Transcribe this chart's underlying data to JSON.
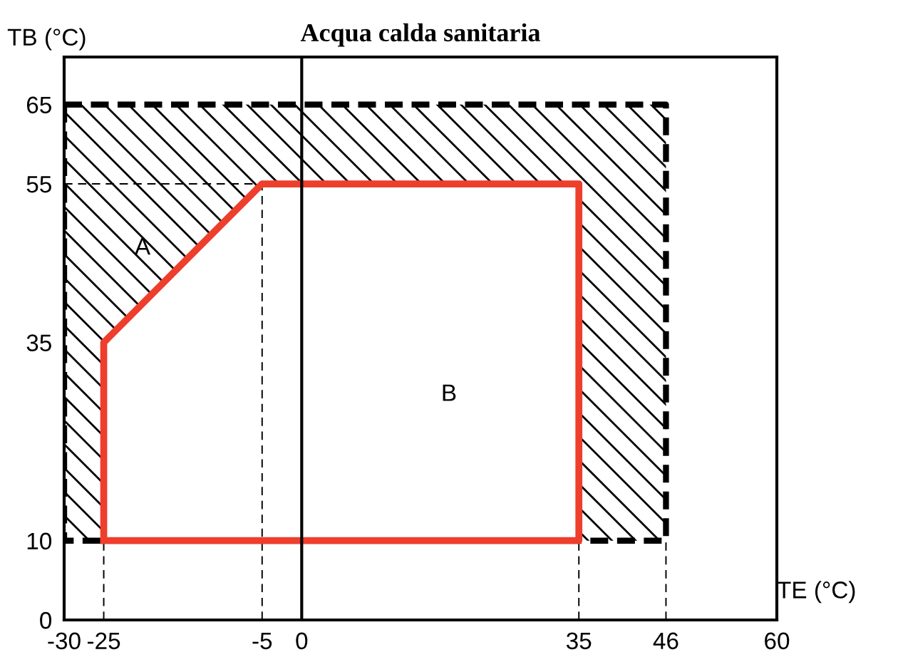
{
  "chart_data": {
    "type": "line",
    "title": "Acqua calda sanitaria",
    "xlabel": "TE (°C)",
    "ylabel": "TB (°C)",
    "xlim": [
      -30,
      60
    ],
    "ylim": [
      0,
      71
    ],
    "xticks": [
      -30,
      -25,
      -5,
      0,
      35,
      46,
      60
    ],
    "yticks": [
      0,
      10,
      35,
      55,
      65
    ],
    "grid": false,
    "legend": false,
    "series": [
      {
        "type": "area",
        "color": "#000000",
        "line_style": "dashed",
        "x": [
          -30,
          46,
          46,
          -30,
          -30
        ],
        "values": [
          65,
          65,
          10,
          10,
          65
        ]
      },
      {
        "type": "area",
        "color": "#ee3e2c",
        "line_style": "solid",
        "x": [
          -25,
          -25,
          -5,
          35,
          35,
          -25
        ],
        "values": [
          10,
          35,
          55,
          55,
          10,
          10
        ]
      },
      {
        "color": "#000000",
        "line_style": "dashed",
        "x": [
          -25,
          -25
        ],
        "values": [
          0,
          10
        ]
      },
      {
        "color": "#000000",
        "line_style": "dashed",
        "x": [
          -5,
          -5
        ],
        "values": [
          0,
          55
        ]
      },
      {
        "color": "#000000",
        "line_style": "dashed",
        "x": [
          35,
          35
        ],
        "values": [
          0,
          10
        ]
      },
      {
        "color": "#000000",
        "line_style": "dashed",
        "x": [
          46,
          46
        ],
        "values": [
          0,
          10
        ]
      },
      {
        "color": "#000000",
        "line_style": "dashed",
        "x": [
          -30,
          -5
        ],
        "values": [
          55,
          55
        ]
      }
    ],
    "ref_lines": [
      {
        "axis": "x",
        "value": 0,
        "color": "#000000",
        "line_style": "solid"
      }
    ],
    "annotations": [
      "A",
      "B"
    ]
  }
}
